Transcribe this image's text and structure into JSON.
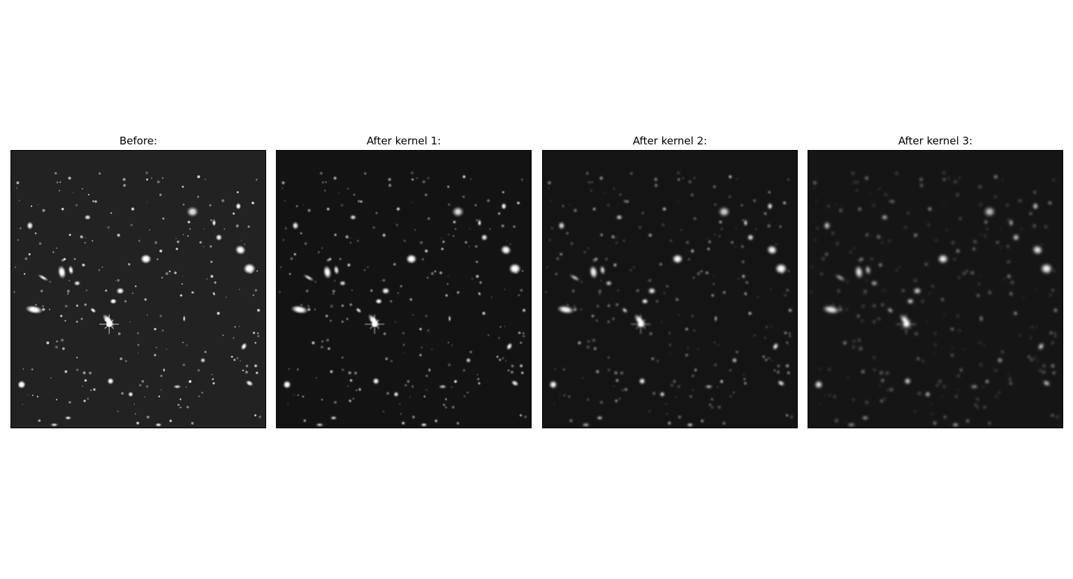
{
  "figure": {
    "panels": [
      {
        "title": "Before:",
        "blur": 0,
        "background": "#222222",
        "brightness": 1.0
      },
      {
        "title": "After kernel 1:",
        "blur": 0.7,
        "background": "#131313",
        "brightness": 0.96
      },
      {
        "title": "After kernel 2:",
        "blur": 1.3,
        "background": "#141414",
        "brightness": 0.9
      },
      {
        "title": "After kernel 3:",
        "blur": 2.0,
        "background": "#151515",
        "brightness": 0.85
      }
    ]
  },
  "image": {
    "subject": "deep-field star and galaxy photograph"
  }
}
